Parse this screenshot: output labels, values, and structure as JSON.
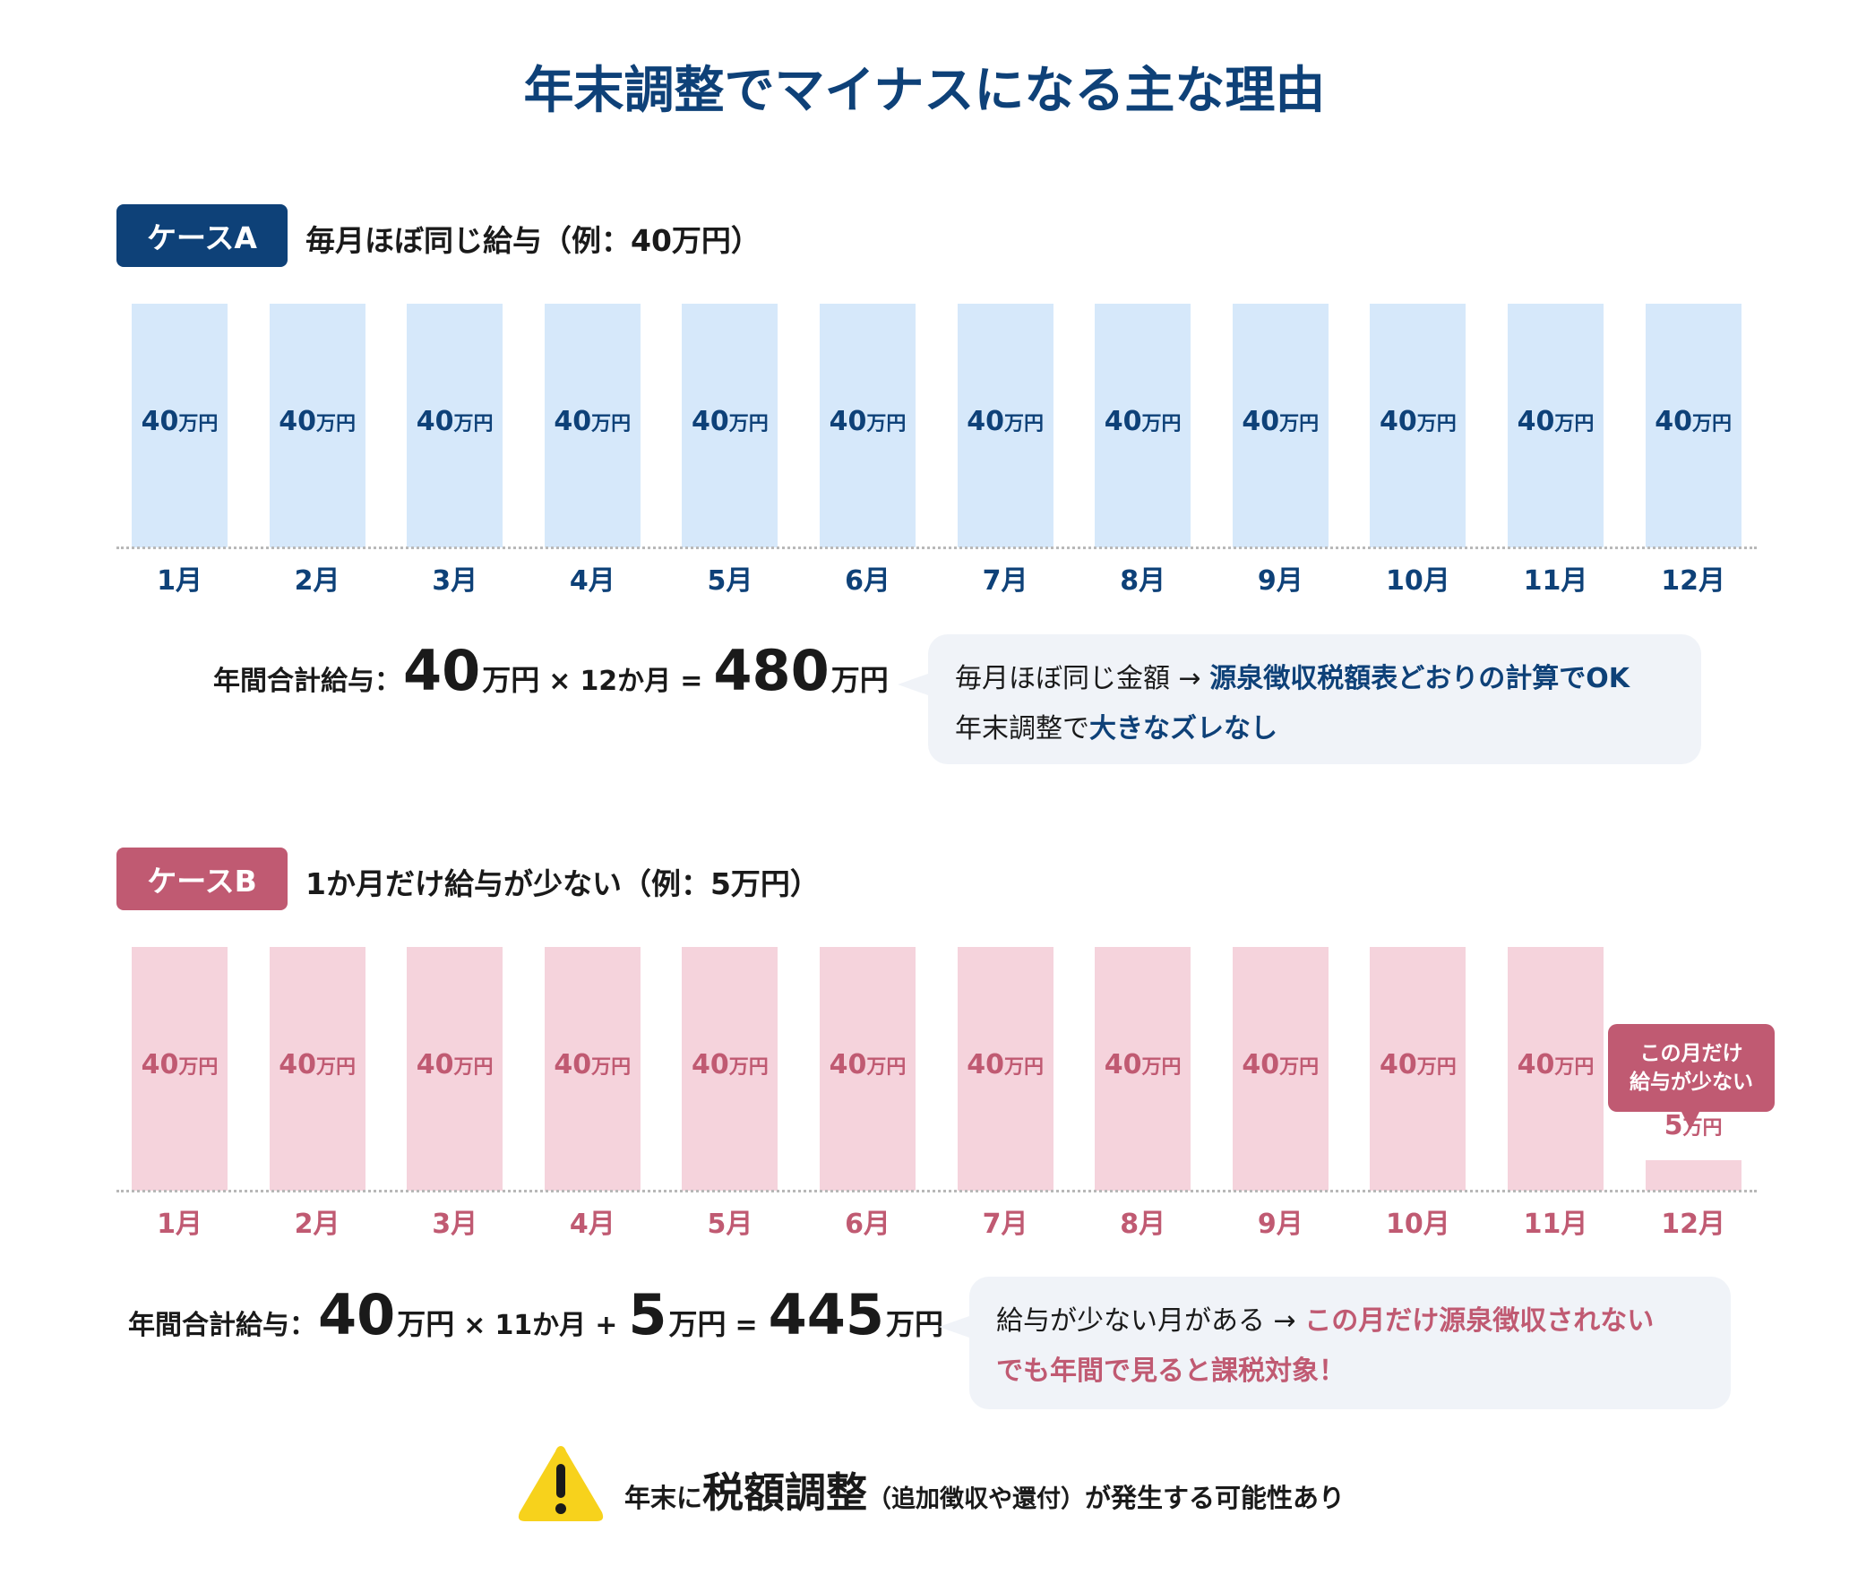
{
  "title": "年末調整でマイナスになる主な理由",
  "colors": {
    "navy": "#0e4178",
    "light_blue": "#d6e8fa",
    "pink": "#c05a72",
    "light_pink": "#f5d3dc",
    "bubble_bg": "#f0f3f8",
    "warning": "#f7d21c"
  },
  "case_a": {
    "badge": "ケースA",
    "subtitle": "毎月ほぼ同じ給与（例：40万円）",
    "months": [
      "1月",
      "2月",
      "3月",
      "4月",
      "5月",
      "6月",
      "7月",
      "8月",
      "9月",
      "10月",
      "11月",
      "12月"
    ],
    "values": [
      40,
      40,
      40,
      40,
      40,
      40,
      40,
      40,
      40,
      40,
      40,
      40
    ],
    "unit": "万円",
    "formula": {
      "label": "年間合計給与：",
      "v1": "40",
      "u1": "万円",
      "op1": "×",
      "months": "12か月",
      "eq": "=",
      "total": "480",
      "u_total": "万円"
    },
    "note": {
      "line1_plain": "毎月ほぼ同じ金額 → ",
      "line1_highlight": "源泉徴収税額表どおりの計算でOK",
      "line2_plain": "年末調整で",
      "line2_highlight": "大きなズレなし"
    }
  },
  "case_b": {
    "badge": "ケースB",
    "subtitle": "1か月だけ給与が少ない（例：5万円）",
    "months": [
      "1月",
      "2月",
      "3月",
      "4月",
      "5月",
      "6月",
      "7月",
      "8月",
      "9月",
      "10月",
      "11月",
      "12月"
    ],
    "values": [
      40,
      40,
      40,
      40,
      40,
      40,
      40,
      40,
      40,
      40,
      40,
      5
    ],
    "unit": "万円",
    "callout": {
      "line1": "この月だけ",
      "line2": "給与が少ない"
    },
    "formula": {
      "label": "年間合計給与：",
      "v1": "40",
      "u1": "万円",
      "op1": "×",
      "months": "11か月",
      "op2": "+",
      "v2": "5",
      "u2": "万円",
      "eq": "=",
      "total": "445",
      "u_total": "万円"
    },
    "note": {
      "line1_plain": "給与が少ない月がある → ",
      "line1_highlight": "この月だけ源泉徴収されない",
      "line2_highlight": "でも年間で見ると課税対象！"
    }
  },
  "warning": {
    "icon": "warning-triangle-icon",
    "pre": "年末に",
    "emphasis": "税額調整",
    "paren": "（追加徴収や還付）",
    "post": "が発生する可能性あり"
  }
}
